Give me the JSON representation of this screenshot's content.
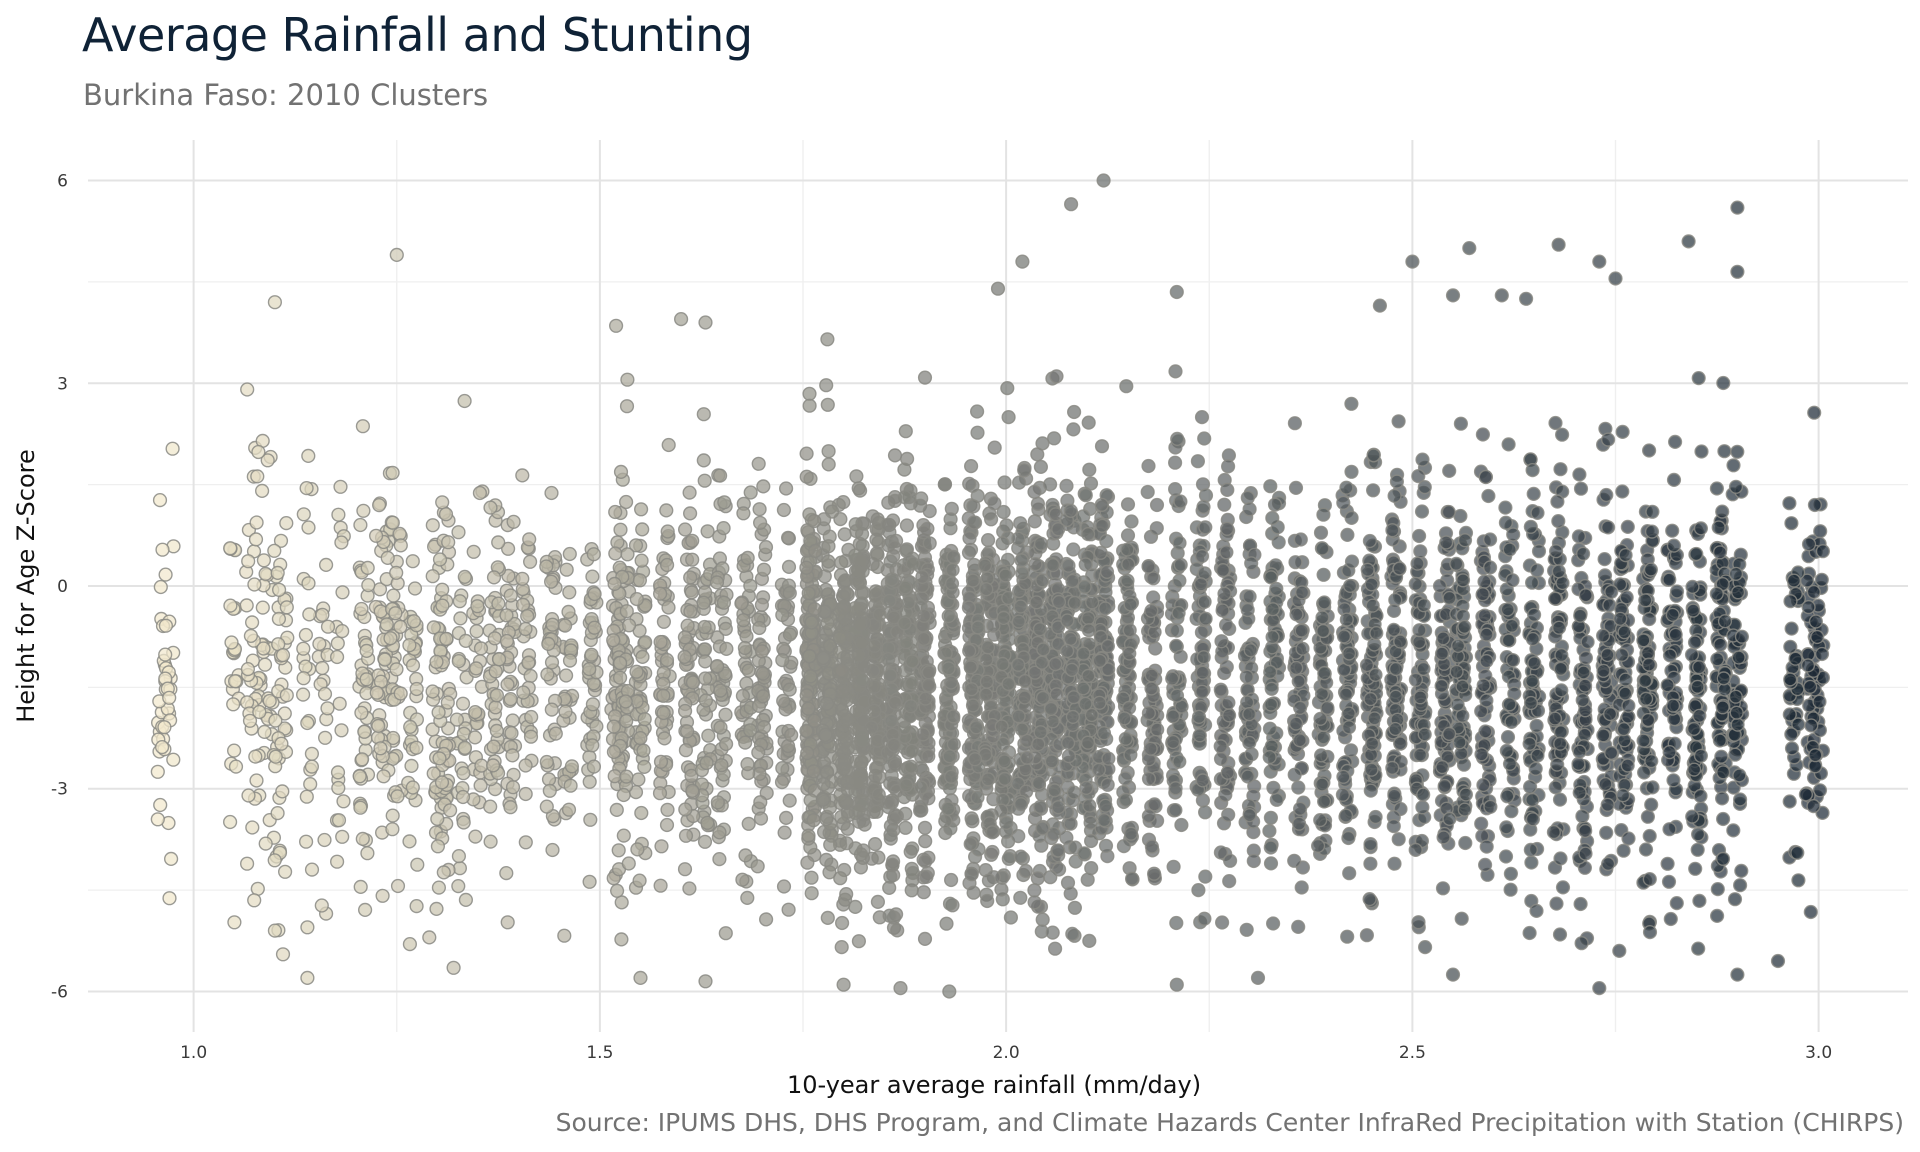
{
  "chart_data": {
    "type": "scatter",
    "title": "Average Rainfall and Stunting",
    "subtitle": "Burkina Faso: 2010 Clusters",
    "caption": "Source: IPUMS DHS, DHS Program, and Climate Hazards Center InfraRed Precipitation with Station (CHIRPS)",
    "xlabel": "10-year average rainfall (mm/day)",
    "ylabel": "Height for Age Z-Score",
    "xlim": [
      0.87,
      3.11
    ],
    "ylim": [
      -6.6,
      6.6
    ],
    "x_ticks": [
      1.0,
      1.5,
      2.0,
      2.5,
      3.0
    ],
    "x_tick_labels": [
      "1.0",
      "1.5",
      "2.0",
      "2.5",
      "3.0"
    ],
    "y_ticks": [
      -6,
      -3,
      0,
      3,
      6
    ],
    "y_tick_labels": [
      "-6",
      "-3",
      "0",
      "3",
      "6"
    ],
    "grid": true,
    "legend": "none",
    "color_gradient": [
      "#f2e9cd",
      "#7f807b",
      "#1d2a36"
    ],
    "color_domain": [
      0.96,
      1.9,
      3.0
    ],
    "stroke_color": "#8a8a84",
    "point_opacity": 0.72,
    "cluster_x_values": [
      0.96,
      0.97,
      1.05,
      1.07,
      1.08,
      1.09,
      1.1,
      1.11,
      1.14,
      1.16,
      1.18,
      1.21,
      1.23,
      1.24,
      1.25,
      1.27,
      1.3,
      1.31,
      1.33,
      1.35,
      1.37,
      1.39,
      1.41,
      1.44,
      1.46,
      1.49,
      1.52,
      1.53,
      1.55,
      1.58,
      1.61,
      1.63,
      1.65,
      1.68,
      1.7,
      1.73,
      1.76,
      1.78,
      1.8,
      1.82,
      1.84,
      1.86,
      1.88,
      1.9,
      1.93,
      1.96,
      1.98,
      2.0,
      2.02,
      2.04,
      2.06,
      2.08,
      2.1,
      2.12,
      2.15,
      2.18,
      2.21,
      2.24,
      2.27,
      2.3,
      2.33,
      2.36,
      2.39,
      2.42,
      2.45,
      2.48,
      2.51,
      2.54,
      2.56,
      2.59,
      2.62,
      2.65,
      2.68,
      2.71,
      2.74,
      2.76,
      2.79,
      2.82,
      2.85,
      2.88,
      2.9,
      2.97,
      2.99,
      3.0
    ],
    "point_count": 6100,
    "y_mean": -1.4,
    "y_sd": 1.45,
    "extreme_points": [
      {
        "x": 2.12,
        "y": 6.0
      },
      {
        "x": 2.08,
        "y": 5.65
      },
      {
        "x": 2.9,
        "y": 5.6
      },
      {
        "x": 2.84,
        "y": 5.1
      },
      {
        "x": 2.68,
        "y": 5.05
      },
      {
        "x": 2.57,
        "y": 5.0
      },
      {
        "x": 1.25,
        "y": 4.9
      },
      {
        "x": 2.5,
        "y": 4.8
      },
      {
        "x": 2.02,
        "y": 4.8
      },
      {
        "x": 2.73,
        "y": 4.8
      },
      {
        "x": 2.9,
        "y": 4.65
      },
      {
        "x": 2.75,
        "y": 4.55
      },
      {
        "x": 1.99,
        "y": 4.4
      },
      {
        "x": 2.21,
        "y": 4.35
      },
      {
        "x": 2.55,
        "y": 4.3
      },
      {
        "x": 2.61,
        "y": 4.3
      },
      {
        "x": 2.64,
        "y": 4.25
      },
      {
        "x": 1.1,
        "y": 4.2
      },
      {
        "x": 2.46,
        "y": 4.15
      },
      {
        "x": 1.6,
        "y": 3.95
      },
      {
        "x": 1.63,
        "y": 3.9
      },
      {
        "x": 1.52,
        "y": 3.85
      },
      {
        "x": 1.78,
        "y": 3.65
      },
      {
        "x": 1.1,
        "y": -5.1
      },
      {
        "x": 1.14,
        "y": -5.05
      },
      {
        "x": 1.29,
        "y": -5.2
      },
      {
        "x": 1.11,
        "y": -5.45
      },
      {
        "x": 1.32,
        "y": -5.65
      },
      {
        "x": 1.14,
        "y": -5.8
      },
      {
        "x": 1.55,
        "y": -5.8
      },
      {
        "x": 1.63,
        "y": -5.85
      },
      {
        "x": 1.8,
        "y": -5.9
      },
      {
        "x": 1.87,
        "y": -5.95
      },
      {
        "x": 1.93,
        "y": -6.0
      },
      {
        "x": 2.21,
        "y": -5.9
      },
      {
        "x": 2.31,
        "y": -5.8
      },
      {
        "x": 2.73,
        "y": -5.95
      },
      {
        "x": 2.55,
        "y": -5.75
      },
      {
        "x": 2.9,
        "y": -5.75
      },
      {
        "x": 2.95,
        "y": -5.55
      }
    ]
  }
}
